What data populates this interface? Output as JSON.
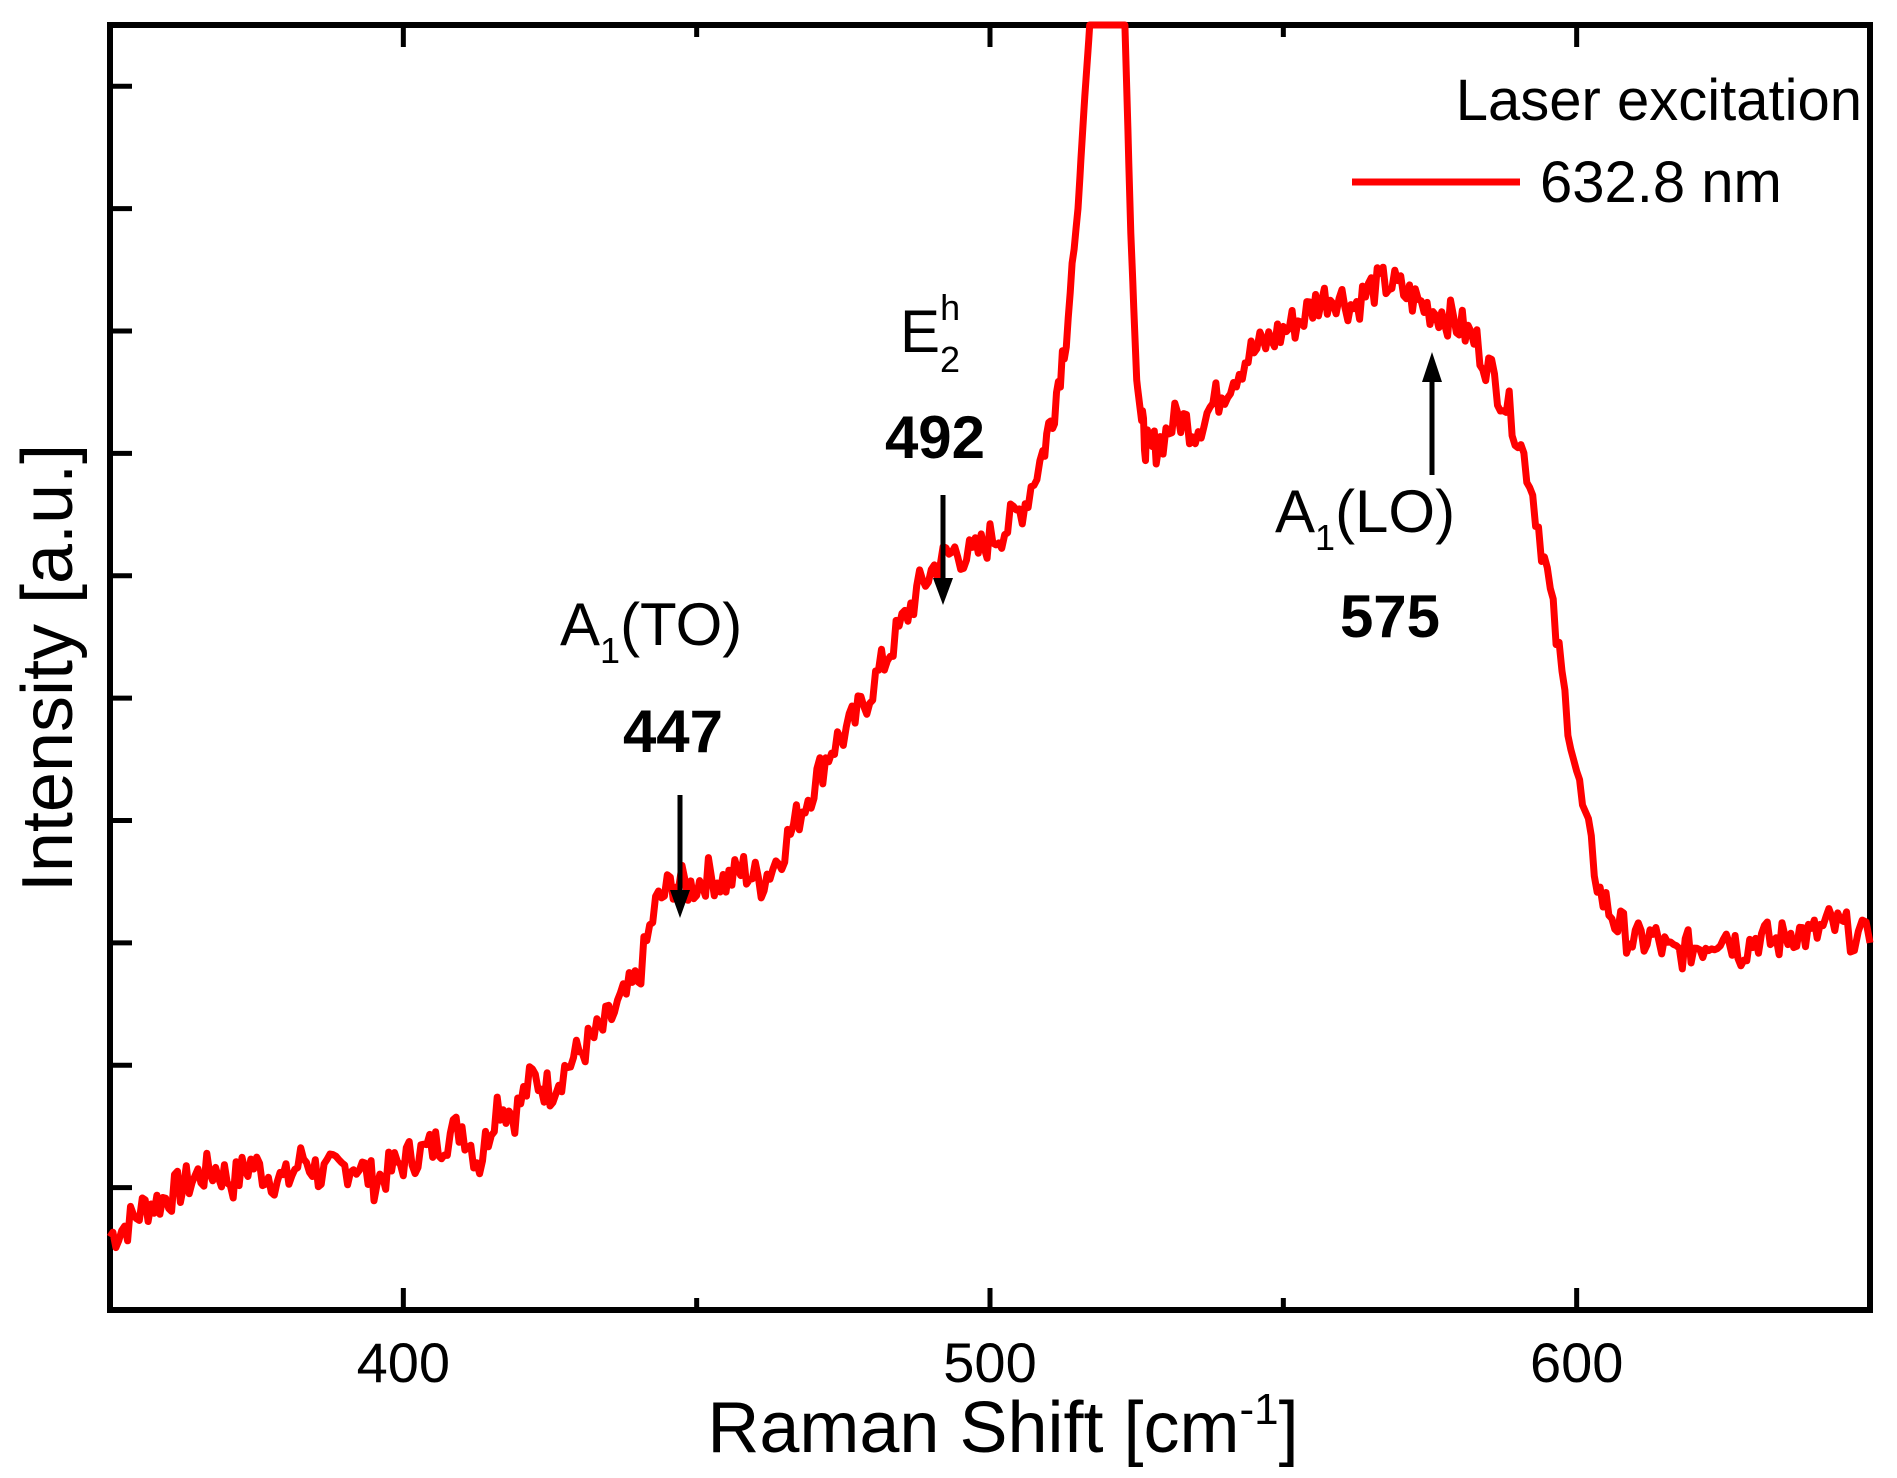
{
  "chart_data": {
    "type": "line",
    "title": "",
    "xlabel": "Raman Shift [cm",
    "xlabel_sup": "-1",
    "xlabel_end": "]",
    "ylabel": "Intensity [a.u.]",
    "xlim": [
      350,
      650
    ],
    "ylim": [
      0,
      10.5
    ],
    "xticks": [
      400,
      500,
      600
    ],
    "xtick_labels": [
      "400",
      "500",
      "600"
    ],
    "yticks_minor": [
      1,
      2,
      3,
      4,
      5,
      6,
      7,
      8,
      9,
      10
    ],
    "legend": {
      "title": "Laser excitation",
      "entries": [
        {
          "label": "632.8 nm",
          "color": "#ff0000"
        }
      ],
      "placement": "top-right"
    },
    "series": [
      {
        "name": "632.8 nm",
        "color": "#ff0000",
        "x": [
          350,
          353,
          356,
          359,
          362,
          365,
          368,
          371,
          374,
          377,
          380,
          383,
          386,
          389,
          392,
          395,
          398,
          401,
          404,
          407,
          410,
          413,
          416,
          419,
          422,
          425,
          428,
          431,
          434,
          437,
          440,
          443,
          446,
          449,
          452,
          455,
          458,
          461,
          464,
          467,
          470,
          473,
          476,
          479,
          482,
          485,
          488,
          491,
          494,
          497,
          500,
          503,
          506,
          509,
          511,
          513,
          515,
          516,
          517,
          518,
          519,
          520,
          521,
          522,
          523,
          524,
          525,
          526,
          527,
          529,
          532,
          535,
          538,
          541,
          544,
          547,
          550,
          553,
          556,
          559,
          562,
          565,
          568,
          571,
          574,
          577,
          580,
          583,
          586,
          589,
          592,
          595,
          598,
          601,
          604,
          607,
          610,
          613,
          616,
          619,
          622,
          625,
          628,
          631,
          634,
          637,
          640,
          643,
          646,
          650
        ],
        "y": [
          0.6,
          0.7,
          0.85,
          0.9,
          1.0,
          1.1,
          1.15,
          1.05,
          1.2,
          1.1,
          1.05,
          1.25,
          1.1,
          1.15,
          1.2,
          1.05,
          1.15,
          1.25,
          1.3,
          1.4,
          1.5,
          1.2,
          1.7,
          1.6,
          1.9,
          1.8,
          2.0,
          2.15,
          2.3,
          2.5,
          2.7,
          3.3,
          3.5,
          3.45,
          3.55,
          3.5,
          3.6,
          3.5,
          3.7,
          4.0,
          4.3,
          4.6,
          4.75,
          5.0,
          5.3,
          5.6,
          5.9,
          6.1,
          6.2,
          6.15,
          6.3,
          6.4,
          6.6,
          7.0,
          7.4,
          8.0,
          9.0,
          9.8,
          10.5,
          10.5,
          10.5,
          10.5,
          10.5,
          10.5,
          10.5,
          8.8,
          7.6,
          7.2,
          7.0,
          7.1,
          7.3,
          7.2,
          7.4,
          7.6,
          7.8,
          7.9,
          8.0,
          8.1,
          8.25,
          8.3,
          8.2,
          8.35,
          8.4,
          8.3,
          8.2,
          8.15,
          8.05,
          7.9,
          7.6,
          7.3,
          6.8,
          6.0,
          5.0,
          4.1,
          3.4,
          3.15,
          3.0,
          3.05,
          2.9,
          2.95,
          3.0,
          3.1,
          2.95,
          3.05,
          3.0,
          3.1,
          3.05,
          3.15,
          3.1,
          3.0
        ]
      }
    ],
    "annotations": [
      {
        "label": "A",
        "sub": "1",
        "rest": "(TO)",
        "value": "447",
        "x": 447
      },
      {
        "label": "E",
        "sub": "2",
        "sup": "h",
        "value": "492",
        "x": 492
      },
      {
        "label": "A",
        "sub": "1",
        "rest": "(LO)",
        "value": "575",
        "x": 575
      }
    ]
  }
}
